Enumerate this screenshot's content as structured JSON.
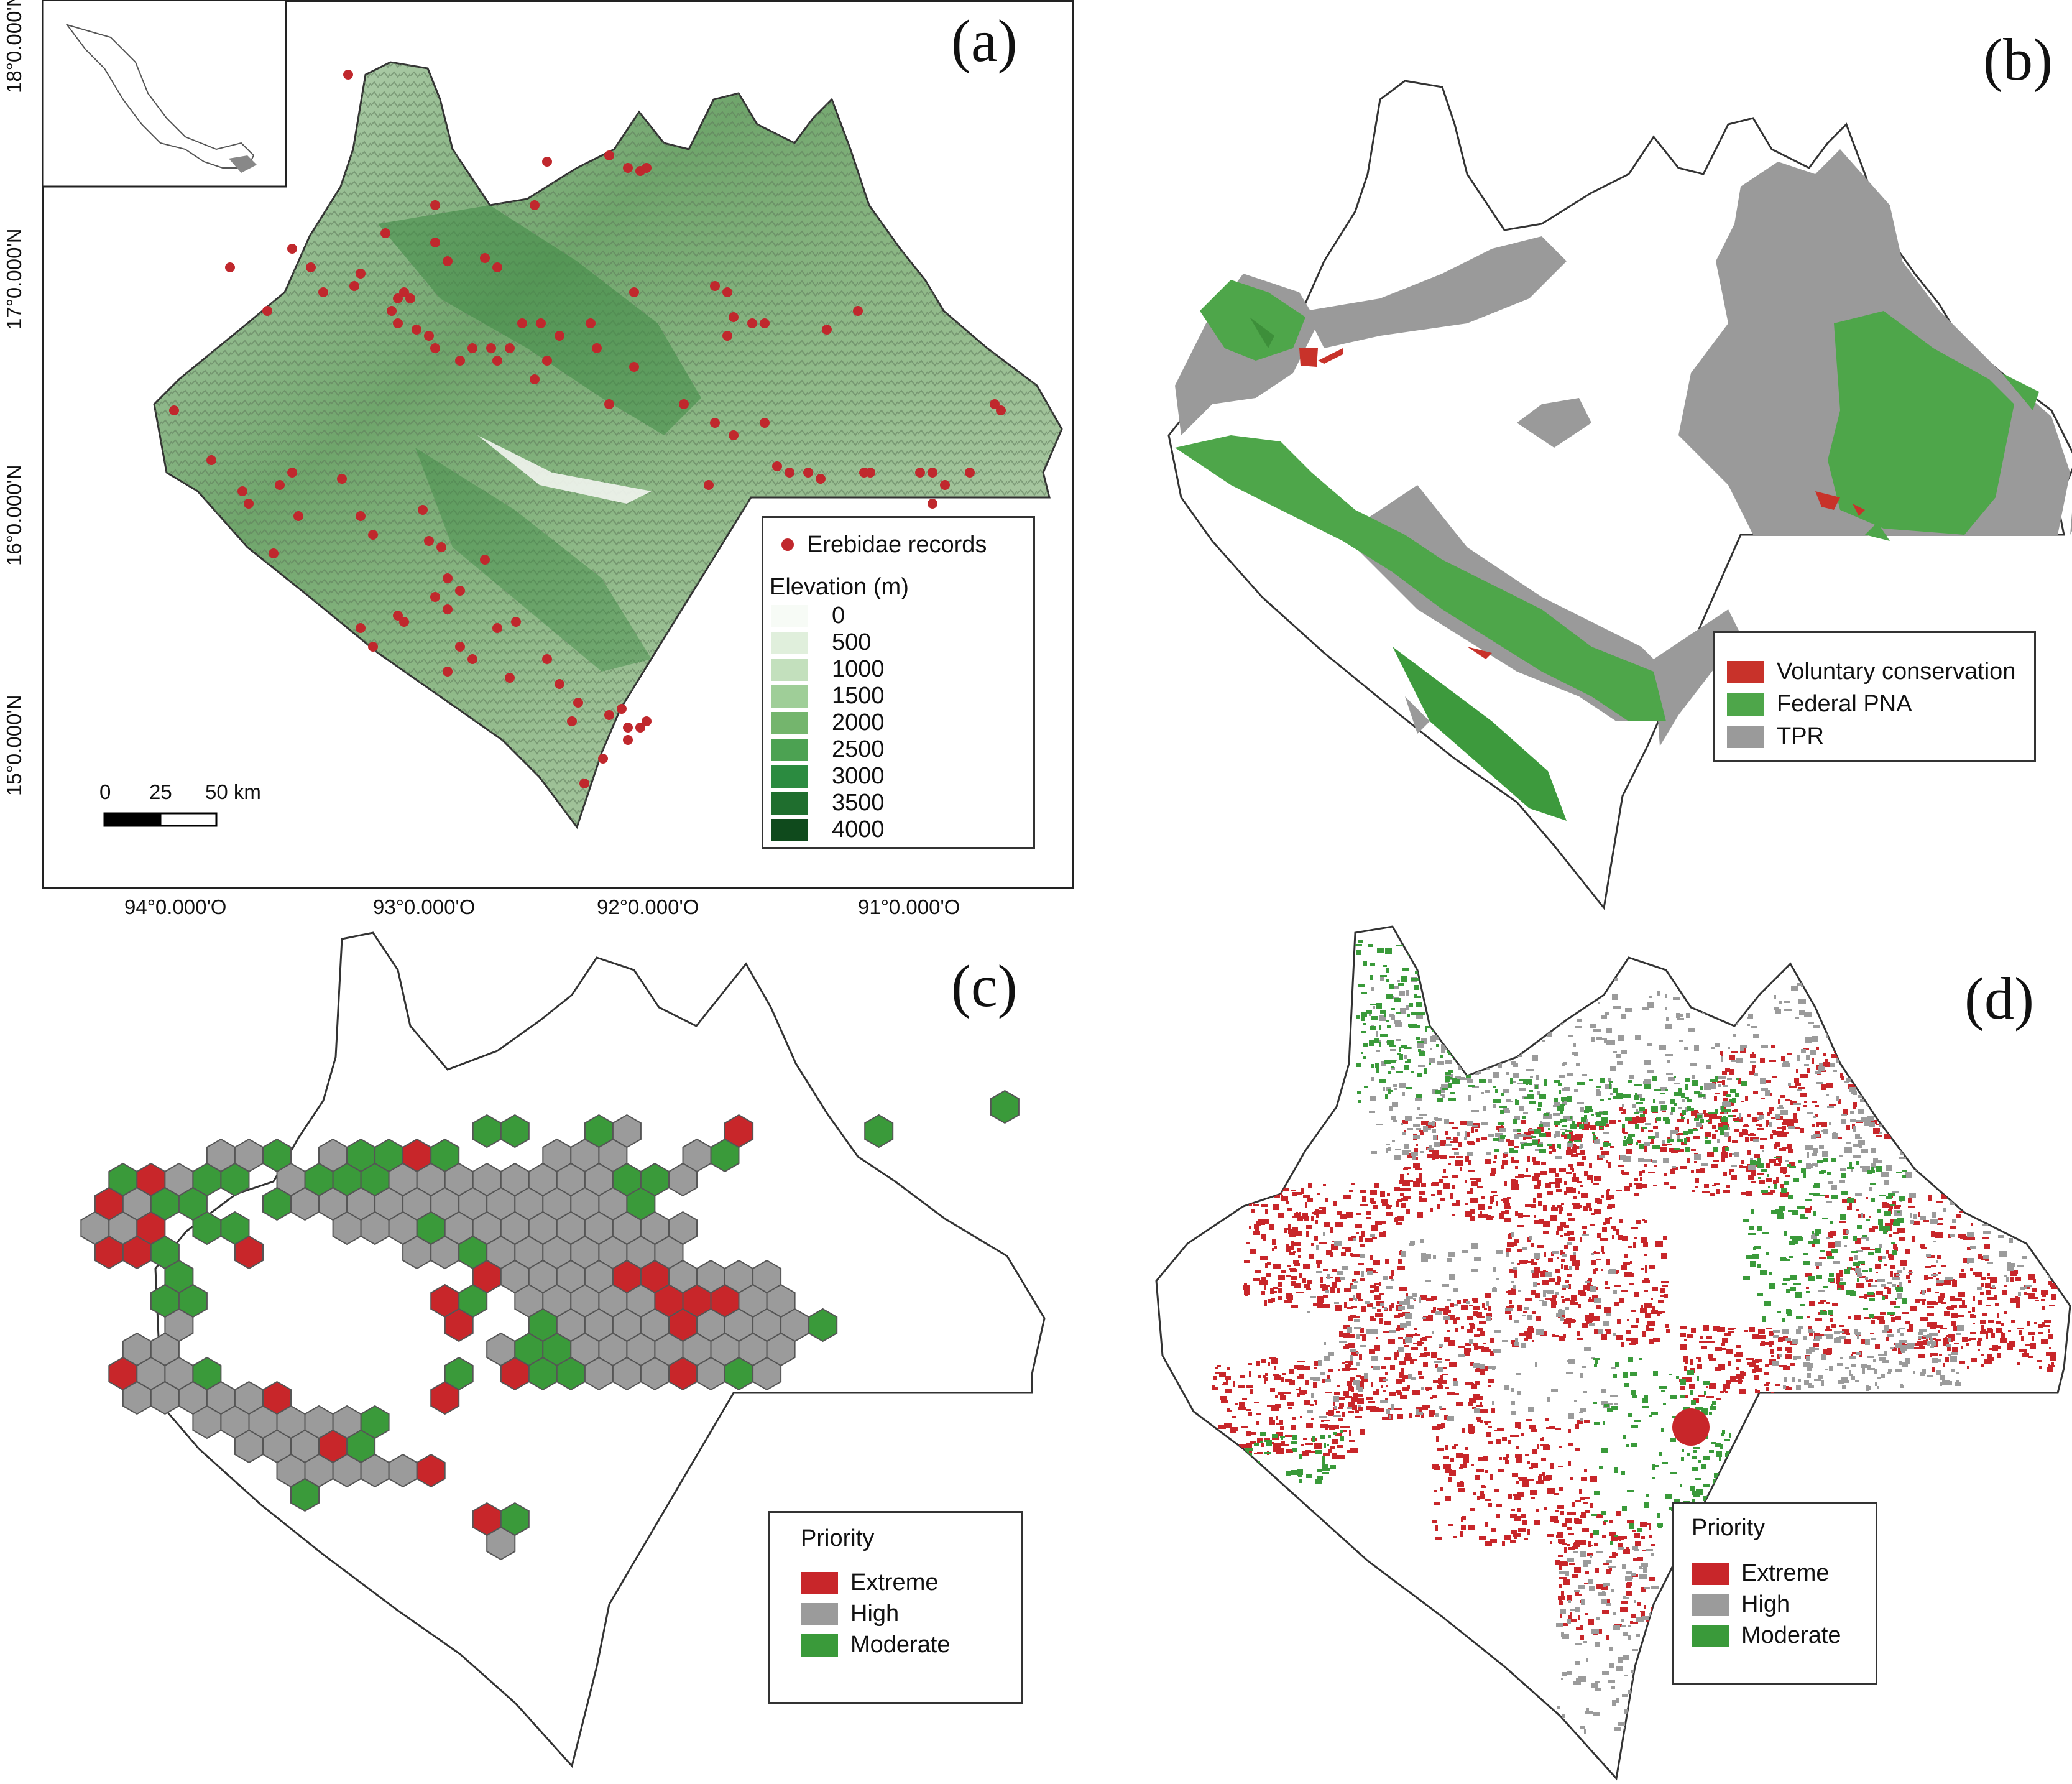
{
  "panels": {
    "a": {
      "label": "(a)",
      "lat_ticks": [
        "18°0.000'N",
        "17°0.000'N",
        "16°0.000'N",
        "15°0.000'N"
      ],
      "lon_ticks": [
        "94°0.000'O",
        "93°0.000'O",
        "92°0.000'O",
        "91°0.000'O"
      ],
      "legend": {
        "points_label": "Erebidae records",
        "elevation_title": "Elevation (m)",
        "elevation_classes": [
          {
            "label": "0",
            "color": "#f7fbf6"
          },
          {
            "label": "500",
            "color": "#e0efdc"
          },
          {
            "label": "1000",
            "color": "#c3e0bd"
          },
          {
            "label": "1500",
            "color": "#9fce98"
          },
          {
            "label": "2000",
            "color": "#74b56d"
          },
          {
            "label": "2500",
            "color": "#4ca252"
          },
          {
            "label": "3000",
            "color": "#2b8b40"
          },
          {
            "label": "3500",
            "color": "#1f6e2e"
          },
          {
            "label": "4000",
            "color": "#0f4a1c"
          }
        ]
      },
      "scale_bar": {
        "ticks": [
          "0",
          "25",
          "50 km"
        ]
      },
      "record_color": "#c0282d"
    },
    "b": {
      "label": "(b)",
      "legend": [
        {
          "label": "Voluntary conservation",
          "color": "#c8322a"
        },
        {
          "label": "Federal PNA",
          "color": "#4ea64a"
        },
        {
          "label": "TPR",
          "color": "#9a9a9a"
        }
      ]
    },
    "c": {
      "label": "(c)",
      "legend_title": "Priority",
      "legend": [
        {
          "label": "Extreme",
          "color": "#c8262a"
        },
        {
          "label": "High",
          "color": "#9b9b9b"
        },
        {
          "label": "Moderate",
          "color": "#3a9a3a"
        }
      ]
    },
    "d": {
      "label": "(d)",
      "legend_title": "Priority",
      "legend": [
        {
          "label": "Extreme",
          "color": "#c8262a"
        },
        {
          "label": "High",
          "color": "#9b9b9b"
        },
        {
          "label": "Moderate",
          "color": "#3a9a3a"
        }
      ]
    }
  }
}
